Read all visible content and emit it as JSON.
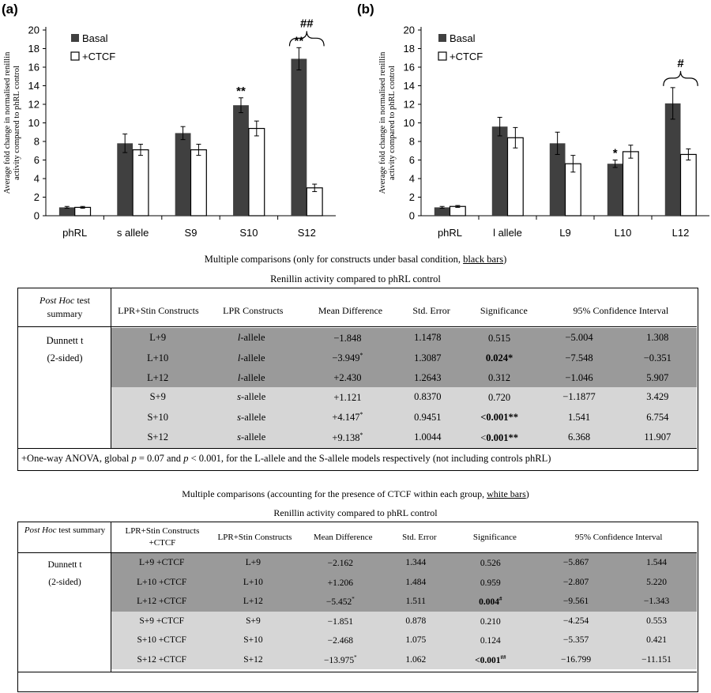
{
  "chart_data": [
    {
      "type": "bar",
      "panel_label": "(a)",
      "categories": [
        "phRL",
        "s allele",
        "S9",
        "S10",
        "S12"
      ],
      "series": [
        {
          "name": "Basal",
          "color": "#404040",
          "values": [
            0.9,
            7.8,
            8.9,
            11.9,
            16.9
          ],
          "errors": [
            0.1,
            1.0,
            0.7,
            0.8,
            1.2
          ]
        },
        {
          "name": "+CTCF",
          "color": "#ffffff",
          "values": [
            0.9,
            7.1,
            7.1,
            9.4,
            3.0
          ],
          "errors": [
            0.1,
            0.6,
            0.6,
            0.8,
            0.4
          ]
        }
      ],
      "ylabel": "Average fold change in normalised renillin activity compared to phRL control",
      "ylim": [
        0,
        20
      ],
      "yticks": [
        0,
        2,
        4,
        6,
        8,
        10,
        12,
        14,
        16,
        18,
        20
      ],
      "annotations": [
        {
          "text": "**",
          "category": "S10",
          "series": "Basal"
        },
        {
          "text": "**",
          "category": "S12",
          "series": "Basal"
        },
        {
          "text": "##",
          "category": "S12",
          "series": "bracket"
        }
      ],
      "legend_position": "top-left",
      "grid": false
    },
    {
      "type": "bar",
      "panel_label": "(b)",
      "categories": [
        "phRL",
        "l allele",
        "L9",
        "L10",
        "L12"
      ],
      "series": [
        {
          "name": "Basal",
          "color": "#404040",
          "values": [
            0.9,
            9.6,
            7.8,
            5.6,
            12.1
          ],
          "errors": [
            0.1,
            1.0,
            1.2,
            0.4,
            1.7
          ]
        },
        {
          "name": "+CTCF",
          "color": "#ffffff",
          "values": [
            1.0,
            8.4,
            5.6,
            6.9,
            6.6
          ],
          "errors": [
            0.1,
            1.1,
            0.9,
            0.7,
            0.6
          ]
        }
      ],
      "ylabel": "Average fold change in normalised renillin activity compared to phRL control",
      "ylim": [
        0,
        20
      ],
      "yticks": [
        0,
        2,
        4,
        6,
        8,
        10,
        12,
        14,
        16,
        18,
        20
      ],
      "annotations": [
        {
          "text": "*",
          "category": "L10",
          "series": "Basal"
        },
        {
          "text": "#",
          "category": "L12",
          "series": "bracket"
        }
      ],
      "legend_position": "top-left",
      "grid": false
    }
  ],
  "table1": {
    "title_prefix": "Multiple comparisons (only for constructs under basal condition, ",
    "title_underlined": "black bars",
    "title_suffix": ")",
    "subtitle": "Renillin activity compared to phRL control",
    "header": {
      "posthoc_italic": "Post Hoc",
      "posthoc_rest": " test summary",
      "col1": "LPR+Stin Constructs",
      "col2": "LPR Constructs",
      "col3": "Mean Difference",
      "col4": "Std. Error",
      "col5": "Significance",
      "col6": "95%  Confidence Interval"
    },
    "test_name": "Dunnett t",
    "test_sides": "(2-sided)",
    "rows": [
      {
        "c1": "L+9",
        "c2a": "l",
        "c2b": "-allele",
        "md": "−1.848",
        "mds": "",
        "se": "1.1478",
        "sig": "0.515",
        "sigb": "",
        "sigs": "",
        "lo": "−5.004",
        "hi": "1.308",
        "shade": "dark"
      },
      {
        "c1": "L+10",
        "c2a": "l",
        "c2b": "-allele",
        "md": "−3.949",
        "mds": "*",
        "se": "1.3087",
        "sig": "",
        "sigb": "0.024*",
        "sigs": "",
        "lo": "−7.548",
        "hi": "−0.351",
        "shade": "dark"
      },
      {
        "c1": "L+12",
        "c2a": "l",
        "c2b": "-allele",
        "md": "+2.430",
        "mds": "",
        "se": "1.2643",
        "sig": "0.312",
        "sigb": "",
        "sigs": "",
        "lo": "−1.046",
        "hi": "5.907",
        "shade": "dark"
      },
      {
        "c1": "S+9",
        "c2a": "s",
        "c2b": "-allele",
        "md": "+1.121",
        "mds": "",
        "se": "0.8370",
        "sig": "0.720",
        "sigb": "",
        "sigs": "",
        "lo": "−1.1877",
        "hi": "3.429",
        "shade": "light"
      },
      {
        "c1": "S+10",
        "c2a": "s",
        "c2b": "-allele",
        "md": "+4.147",
        "mds": "*",
        "se": "0.9451",
        "sig": "",
        "sigb": "<0.001**",
        "sigs": "",
        "lo": "1.541",
        "hi": "6.754",
        "shade": "light"
      },
      {
        "c1": "S+12",
        "c2a": "s",
        "c2b": "-allele",
        "md": "+9.138",
        "mds": "*",
        "se": "1.0044",
        "sig": "<",
        "sigb": "0.001**",
        "sigs": "",
        "lo": "6.368",
        "hi": "11.907",
        "shade": "light"
      }
    ],
    "footnote_a": "+One-way ANOVA,  global ",
    "footnote_p1": "p",
    "footnote_b": " = 0.07 and ",
    "footnote_p2": "p",
    "footnote_c": " < 0.001, for the L-allele and the S-allele models respectively (not including controls phRL)"
  },
  "table2": {
    "title_prefix": "Multiple comparisons (accounting for the presence  of CTCF within each group, ",
    "title_underlined": "white bars",
    "title_suffix": ")",
    "subtitle": "Renillin activity  compared to phRL control",
    "header": {
      "posthoc_italic": "Post Hoc",
      "posthoc_rest": " test summary",
      "col1": "LPR+Stin Constructs  +CTCF",
      "col2": "LPR+Stin Constructs",
      "col3": "Mean Difference",
      "col4": "Std. Error",
      "col5": "Significance",
      "col6": "95%  Confidence Interval"
    },
    "test_name": "Dunnett t",
    "test_sides": "(2-sided)",
    "rows": [
      {
        "c1": "L+9 +CTCF",
        "c2": "L+9",
        "md": "−2.162",
        "mds": "",
        "se": "1.344",
        "sig": "0.526",
        "sigb": "",
        "sigs": "",
        "lo": "−5.867",
        "hi": "1.544",
        "shade": "dark"
      },
      {
        "c1": "L+10 +CTCF",
        "c2": "L+10",
        "md": "+1.206",
        "mds": "",
        "se": "1.484",
        "sig": "0.959",
        "sigb": "",
        "sigs": "",
        "lo": "−2.807",
        "hi": "5.220",
        "shade": "dark"
      },
      {
        "c1": "L+12 +CTCF",
        "c2": "L+12",
        "md": "−5.452",
        "mds": "*",
        "se": "1.511",
        "sig": "",
        "sigb": "0.004",
        "sigs": "#",
        "lo": "−9.561",
        "hi": "−1.343",
        "shade": "dark"
      },
      {
        "c1": "S+9 +CTCF",
        "c2": "S+9",
        "md": "−1.851",
        "mds": "",
        "se": "0.878",
        "sig": "0.210",
        "sigb": "",
        "sigs": "",
        "lo": "−4.254",
        "hi": "0.553",
        "shade": "light"
      },
      {
        "c1": "S+10 +CTCF",
        "c2": "S+10",
        "md": "−2.468",
        "mds": "",
        "se": "1.075",
        "sig": "0.124",
        "sigb": "",
        "sigs": "",
        "lo": "−5.357",
        "hi": "0.421",
        "shade": "light"
      },
      {
        "c1": "S+12 +CTCF",
        "c2": "S+12",
        "md": "−13.975",
        "mds": "*",
        "se": "1.062",
        "sig": "",
        "sigb": "<0.001",
        "sigs": "##",
        "lo": "−16.799",
        "hi": "−11.151",
        "shade": "light"
      }
    ]
  }
}
